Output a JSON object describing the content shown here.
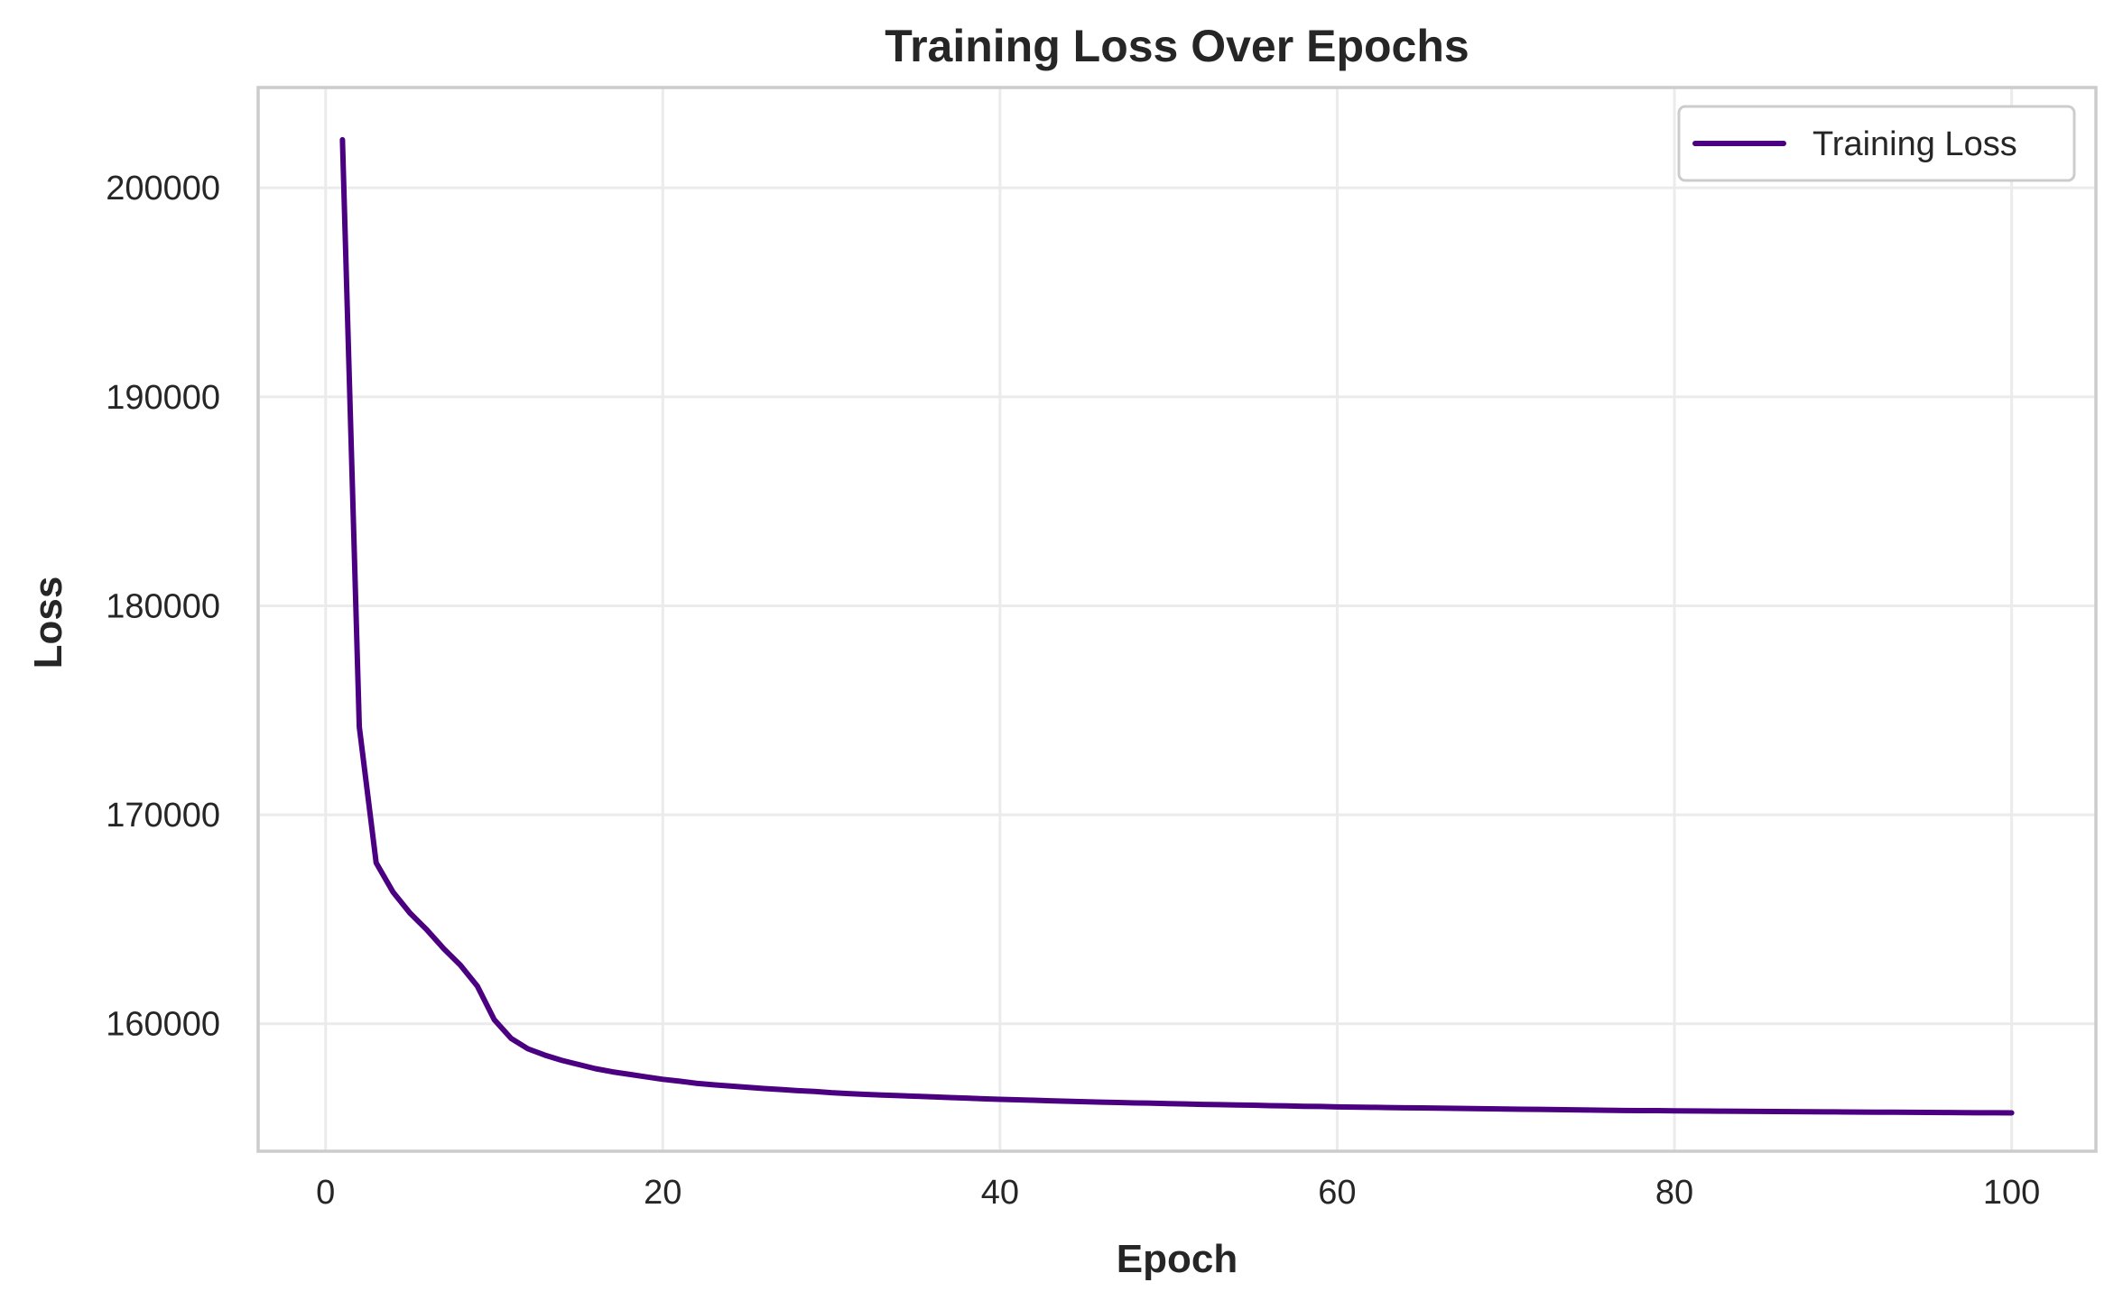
{
  "chart_data": {
    "type": "line",
    "title": "Training Loss Over Epochs",
    "xlabel": "Epoch",
    "ylabel": "Loss",
    "xlim": [
      -4,
      105
    ],
    "ylim": [
      153900,
      204800
    ],
    "xticks": [
      0,
      20,
      40,
      60,
      80,
      100
    ],
    "yticks": [
      160000,
      170000,
      180000,
      190000,
      200000
    ],
    "grid": true,
    "legend_position": "top-right",
    "series": [
      {
        "name": "Training Loss",
        "color": "#4b0082",
        "x": [
          1,
          2,
          3,
          4,
          5,
          6,
          7,
          8,
          9,
          10,
          11,
          12,
          13,
          14,
          15,
          16,
          17,
          18,
          19,
          20,
          21,
          22,
          23,
          24,
          25,
          26,
          27,
          28,
          29,
          30,
          31,
          32,
          33,
          34,
          35,
          36,
          37,
          38,
          39,
          40,
          41,
          42,
          43,
          44,
          45,
          46,
          47,
          48,
          49,
          50,
          51,
          52,
          53,
          54,
          55,
          56,
          57,
          58,
          59,
          60,
          61,
          62,
          63,
          64,
          65,
          66,
          67,
          68,
          69,
          70,
          71,
          72,
          73,
          74,
          75,
          76,
          77,
          78,
          79,
          80,
          81,
          82,
          83,
          84,
          85,
          86,
          87,
          88,
          89,
          90,
          91,
          92,
          93,
          94,
          95,
          96,
          97,
          98,
          99,
          100
        ],
        "values": [
          202300,
          174200,
          167700,
          166300,
          165300,
          164500,
          163600,
          162800,
          161800,
          160200,
          159300,
          158800,
          158500,
          158250,
          158050,
          157850,
          157700,
          157580,
          157460,
          157340,
          157250,
          157150,
          157080,
          157020,
          156960,
          156900,
          156850,
          156800,
          156760,
          156700,
          156660,
          156620,
          156590,
          156560,
          156530,
          156500,
          156470,
          156440,
          156410,
          156380,
          156360,
          156340,
          156310,
          156290,
          156270,
          156250,
          156230,
          156210,
          156200,
          156180,
          156160,
          156140,
          156130,
          156110,
          156100,
          156080,
          156070,
          156050,
          156040,
          156020,
          156010,
          156000,
          155990,
          155980,
          155970,
          155960,
          155950,
          155940,
          155930,
          155920,
          155910,
          155900,
          155890,
          155880,
          155870,
          155860,
          155850,
          155845,
          155840,
          155830,
          155825,
          155820,
          155815,
          155810,
          155805,
          155800,
          155795,
          155790,
          155785,
          155780,
          155775,
          155770,
          155765,
          155760,
          155755,
          155750,
          155745,
          155742,
          155738,
          155735
        ]
      }
    ]
  }
}
